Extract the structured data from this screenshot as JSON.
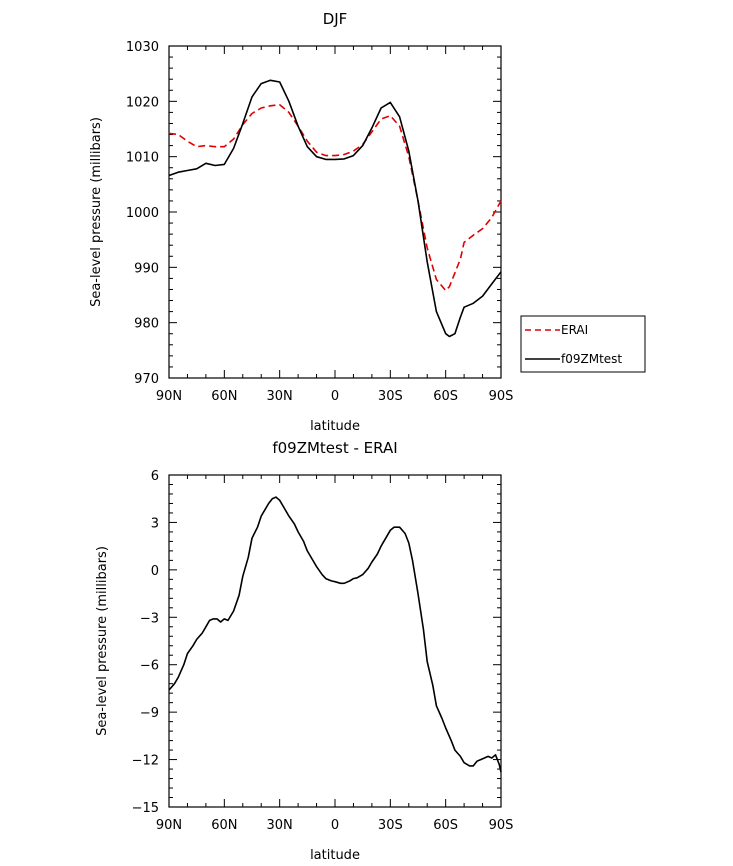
{
  "chart_data": [
    {
      "type": "line",
      "title": "DJF",
      "xlabel": "latitude",
      "ylabel": "Sea-level pressure (millibars)",
      "xlim": [
        90,
        -90
      ],
      "ylim": [
        970,
        1030
      ],
      "x_ticks": [
        90,
        60,
        30,
        0,
        -30,
        -60,
        -90
      ],
      "x_tick_labels": [
        "90N",
        "60N",
        "30N",
        "0",
        "30S",
        "60S",
        "90S"
      ],
      "y_ticks": [
        970,
        980,
        990,
        1000,
        1010,
        1020,
        1030
      ],
      "y_tick_labels": [
        "970",
        "980",
        "990",
        "1000",
        "1010",
        "1020",
        "1030"
      ],
      "legend": "right",
      "series": [
        {
          "name": "ERAI",
          "color": "#e00000",
          "dash": "dashed",
          "x": [
            90,
            85,
            80,
            75,
            70,
            65,
            60,
            55,
            50,
            45,
            40,
            35,
            30,
            25,
            20,
            15,
            10,
            5,
            0,
            -5,
            -10,
            -15,
            -20,
            -25,
            -30,
            -35,
            -40,
            -45,
            -50,
            -55,
            -60,
            -62,
            -65,
            -68,
            -70,
            -75,
            -80,
            -85,
            -90
          ],
          "y": [
            1014.2,
            1014.0,
            1012.8,
            1011.8,
            1012.0,
            1011.8,
            1011.8,
            1013.2,
            1015.8,
            1017.8,
            1018.8,
            1019.2,
            1019.4,
            1018.0,
            1015.5,
            1012.8,
            1010.8,
            1010.2,
            1010.2,
            1010.4,
            1011.0,
            1012.2,
            1014.5,
            1016.8,
            1017.4,
            1015.5,
            1010.0,
            1002.0,
            993.5,
            987.8,
            985.8,
            986.5,
            989.0,
            991.5,
            994.5,
            995.8,
            997.0,
            999.0,
            1002.0
          ]
        },
        {
          "name": "f09ZMtest",
          "color": "#000000",
          "dash": "solid",
          "x": [
            90,
            85,
            80,
            75,
            70,
            65,
            60,
            55,
            50,
            45,
            40,
            35,
            30,
            25,
            20,
            15,
            10,
            5,
            0,
            -5,
            -10,
            -15,
            -20,
            -25,
            -30,
            -35,
            -40,
            -45,
            -50,
            -55,
            -60,
            -62,
            -65,
            -68,
            -70,
            -75,
            -80,
            -85,
            -90
          ],
          "y": [
            1006.6,
            1007.2,
            1007.5,
            1007.8,
            1008.8,
            1008.4,
            1008.6,
            1011.5,
            1016.0,
            1020.8,
            1023.2,
            1023.8,
            1023.5,
            1020.0,
            1015.5,
            1011.8,
            1010.0,
            1009.5,
            1009.5,
            1009.6,
            1010.2,
            1012.0,
            1015.2,
            1018.8,
            1019.8,
            1017.2,
            1011.0,
            1002.0,
            991.0,
            982.0,
            978.0,
            977.5,
            978.0,
            981.0,
            982.8,
            983.5,
            984.8,
            987.0,
            989.2
          ]
        }
      ]
    },
    {
      "type": "line",
      "title": "f09ZMtest - ERAI",
      "xlabel": "latitude",
      "ylabel": "Sea-level pressure (millibars)",
      "xlim": [
        90,
        -90
      ],
      "ylim": [
        -15,
        6
      ],
      "x_ticks": [
        90,
        60,
        30,
        0,
        -30,
        -60,
        -90
      ],
      "x_tick_labels": [
        "90N",
        "60N",
        "30N",
        "0",
        "30S",
        "60S",
        "90S"
      ],
      "y_ticks": [
        -15,
        -12,
        -9,
        -6,
        -3,
        0,
        3,
        6
      ],
      "y_tick_labels": [
        "−15",
        "−12",
        "−9",
        "−6",
        "−3",
        "0",
        "3",
        "6"
      ],
      "series": [
        {
          "color": "#000000",
          "dash": "solid",
          "x": [
            90,
            87,
            85,
            82,
            80,
            77,
            75,
            72,
            70,
            68,
            66,
            64,
            62,
            60,
            58,
            55,
            52,
            50,
            47,
            45,
            42,
            40,
            38,
            36,
            34,
            32,
            30,
            28,
            25,
            22,
            20,
            17,
            15,
            12,
            10,
            7,
            5,
            2,
            0,
            -3,
            -5,
            -8,
            -10,
            -12,
            -15,
            -18,
            -20,
            -23,
            -25,
            -28,
            -30,
            -32,
            -35,
            -38,
            -40,
            -42,
            -45,
            -48,
            -50,
            -53,
            -55,
            -58,
            -60,
            -63,
            -65,
            -68,
            -70,
            -73,
            -75,
            -77,
            -79,
            -81,
            -83,
            -85,
            -87,
            -89,
            -90
          ],
          "y": [
            -7.6,
            -7.2,
            -6.8,
            -6.0,
            -5.3,
            -4.8,
            -4.4,
            -4.0,
            -3.6,
            -3.2,
            -3.1,
            -3.1,
            -3.3,
            -3.1,
            -3.2,
            -2.6,
            -1.6,
            -0.4,
            0.8,
            2.0,
            2.7,
            3.4,
            3.8,
            4.2,
            4.5,
            4.6,
            4.4,
            4.0,
            3.4,
            2.9,
            2.4,
            1.8,
            1.2,
            0.6,
            0.2,
            -0.3,
            -0.55,
            -0.7,
            -0.75,
            -0.85,
            -0.85,
            -0.7,
            -0.55,
            -0.5,
            -0.3,
            0.1,
            0.5,
            1.0,
            1.5,
            2.1,
            2.5,
            2.7,
            2.7,
            2.3,
            1.7,
            0.6,
            -1.5,
            -3.8,
            -5.8,
            -7.3,
            -8.6,
            -9.4,
            -10.0,
            -10.8,
            -11.4,
            -11.8,
            -12.2,
            -12.4,
            -12.4,
            -12.1,
            -12.0,
            -11.9,
            -11.8,
            -11.9,
            -11.7,
            -12.3,
            -12.8
          ]
        }
      ]
    }
  ]
}
